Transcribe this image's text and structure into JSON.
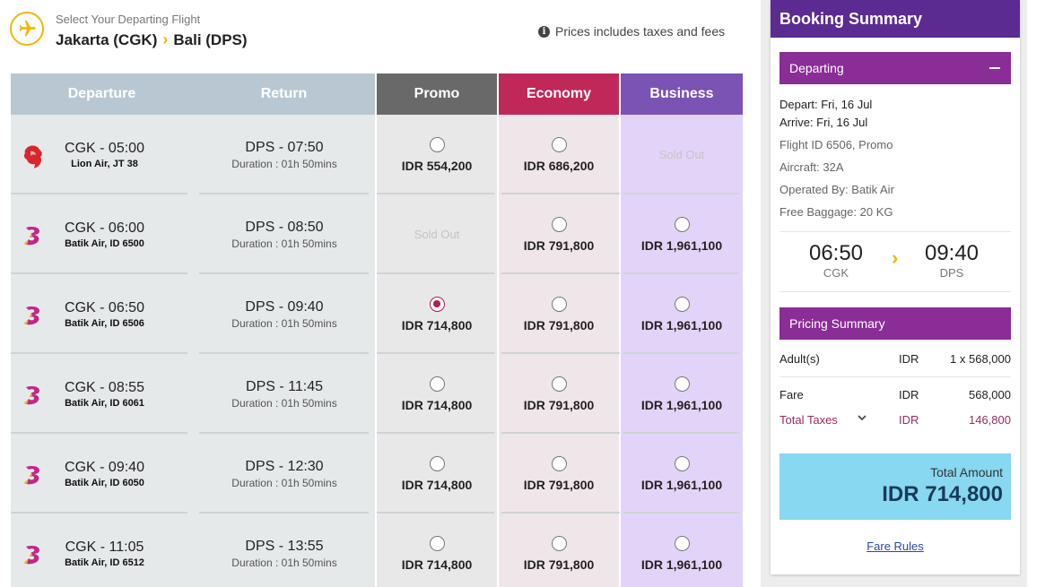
{
  "header": {
    "subtitle": "Select Your Departing Flight",
    "origin": "Jakarta (CGK)",
    "destination": "Bali (DPS)",
    "note": "Prices includes taxes and fees",
    "icons": {
      "plane": "airplane-icon",
      "info": "info-icon",
      "arrow": "chevron-right-icon"
    }
  },
  "table": {
    "headers": [
      "Departure",
      "Return",
      "Promo",
      "Economy",
      "Business"
    ],
    "header_colors": {
      "left": "#b8c7d2",
      "promo": "#696969",
      "economy": "#c0285a",
      "business": "#7a53b5"
    },
    "column_colors": {
      "left": "#e6e9ea",
      "promo": "#e8e8e8",
      "economy": "#efe6ea",
      "business": "#e2d4f8"
    },
    "rows": [
      {
        "logo": "lion-air-logo",
        "depart": "CGK - 05:00",
        "airline": "Lion Air, JT 38",
        "return": "DPS - 07:50",
        "duration": "Duration : 01h 50mins",
        "promo": "IDR 554,200",
        "promo_sold": false,
        "economy": "IDR 686,200",
        "economy_sold": false,
        "business": "Sold Out",
        "business_sold": true,
        "selected": ""
      },
      {
        "logo": "batik-air-logo",
        "depart": "CGK - 06:00",
        "airline": "Batik Air, ID 6500",
        "return": "DPS - 08:50",
        "duration": "Duration : 01h 50mins",
        "promo": "Sold Out",
        "promo_sold": true,
        "economy": "IDR 791,800",
        "economy_sold": false,
        "business": "IDR 1,961,100",
        "business_sold": false,
        "selected": ""
      },
      {
        "logo": "batik-air-logo",
        "depart": "CGK - 06:50",
        "airline": "Batik Air, ID 6506",
        "return": "DPS - 09:40",
        "duration": "Duration : 01h 50mins",
        "promo": "IDR 714,800",
        "promo_sold": false,
        "economy": "IDR 791,800",
        "economy_sold": false,
        "business": "IDR 1,961,100",
        "business_sold": false,
        "selected": "promo"
      },
      {
        "logo": "batik-air-logo",
        "depart": "CGK - 08:55",
        "airline": "Batik Air, ID 6061",
        "return": "DPS - 11:45",
        "duration": "Duration : 01h 50mins",
        "promo": "IDR 714,800",
        "promo_sold": false,
        "economy": "IDR 791,800",
        "economy_sold": false,
        "business": "IDR 1,961,100",
        "business_sold": false,
        "selected": ""
      },
      {
        "logo": "batik-air-logo",
        "depart": "CGK - 09:40",
        "airline": "Batik Air, ID 6050",
        "return": "DPS - 12:30",
        "duration": "Duration : 01h 50mins",
        "promo": "IDR 714,800",
        "promo_sold": false,
        "economy": "IDR 791,800",
        "economy_sold": false,
        "business": "IDR 1,961,100",
        "business_sold": false,
        "selected": ""
      },
      {
        "logo": "batik-air-logo",
        "depart": "CGK - 11:05",
        "airline": "Batik Air, ID 6512",
        "return": "DPS - 13:55",
        "duration": "Duration : 01h 50mins",
        "promo": "IDR 714,800",
        "promo_sold": false,
        "economy": "IDR 791,800",
        "economy_sold": false,
        "business": "IDR 1,961,100",
        "business_sold": false,
        "selected": ""
      }
    ]
  },
  "summary": {
    "title": "Booking Summary",
    "departing_label": "Departing",
    "depart_date": "Depart: Fri, 16 Jul",
    "arrive_date": "Arrive: Fri, 16 Jul",
    "flight_id": "Flight ID 6506, Promo",
    "aircraft": "Aircraft: 32A",
    "operated_by": "Operated By: Batik Air",
    "baggage": "Free Baggage: 20 KG",
    "depart_time": "06:50",
    "depart_code": "CGK",
    "arrive_time": "09:40",
    "arrive_code": "DPS",
    "pricing_label": "Pricing Summary",
    "adults_label": "Adult(s)",
    "adults_currency": "IDR",
    "adults_value": "1 x 568,000",
    "fare_label": "Fare",
    "fare_currency": "IDR",
    "fare_value": "568,000",
    "taxes_label": "Total Taxes",
    "taxes_currency": "IDR",
    "taxes_value": "146,800",
    "total_label": "Total Amount",
    "total_value": "IDR 714,800",
    "fare_rules": "Fare Rules",
    "colors": {
      "title": "#5b2b91",
      "bar": "#8a2d96",
      "total": "#87d8f0"
    }
  }
}
